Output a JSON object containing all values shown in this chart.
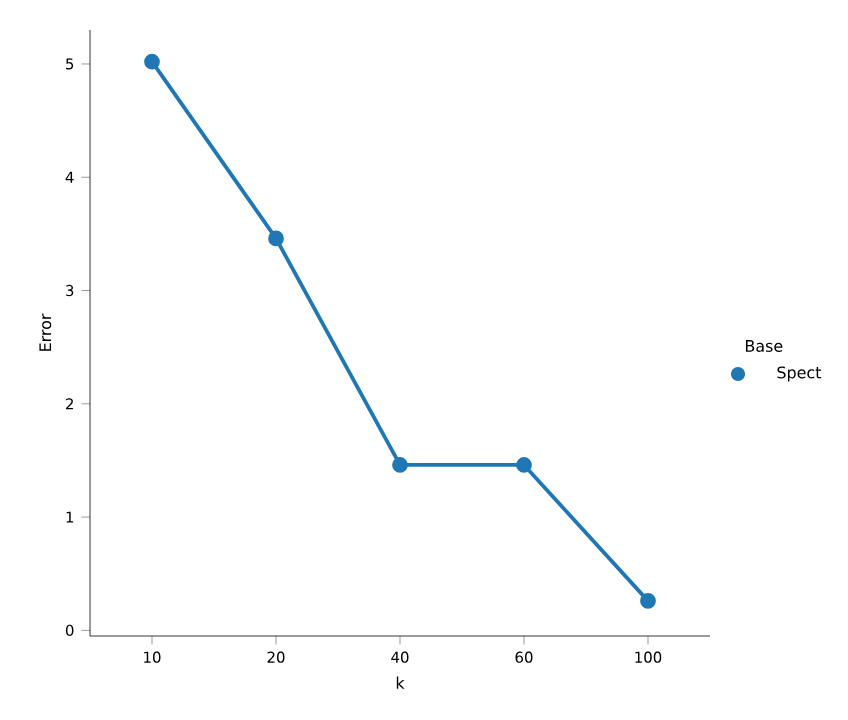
{
  "chart_data": {
    "type": "line",
    "xlabel": "k",
    "ylabel": "Error",
    "legend_title": "Base",
    "categories": [
      "10",
      "20",
      "40",
      "60",
      "100"
    ],
    "series": [
      {
        "name": "Spect",
        "color": "#1f77b4",
        "values": [
          5.02,
          3.46,
          1.46,
          1.46,
          0.26
        ]
      }
    ],
    "ylim": [
      -0.05,
      5.3
    ],
    "yticks": [
      0,
      1,
      2,
      3,
      4,
      5
    ],
    "legend": "right",
    "marker": "circle",
    "line_style": "solid",
    "grid": false
  }
}
